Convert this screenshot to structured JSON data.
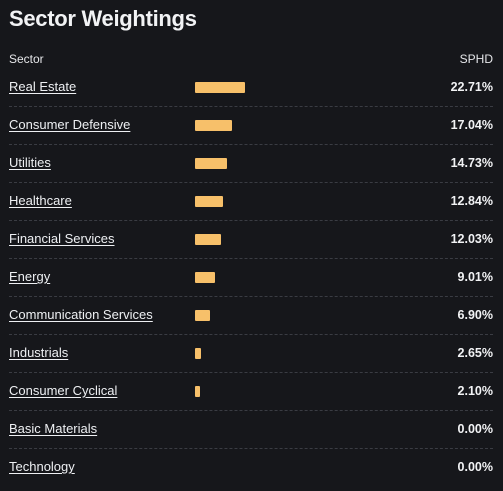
{
  "title": "Sector Weightings",
  "columns": {
    "sector": "Sector",
    "fund": "SPHD"
  },
  "bar_color": "#f7c06a",
  "scale_max_pct": 100,
  "rows": [
    {
      "sector": "Real Estate",
      "value": "22.71%",
      "pct": 22.71
    },
    {
      "sector": "Consumer Defensive",
      "value": "17.04%",
      "pct": 17.04
    },
    {
      "sector": "Utilities",
      "value": "14.73%",
      "pct": 14.73
    },
    {
      "sector": "Healthcare",
      "value": "12.84%",
      "pct": 12.84
    },
    {
      "sector": "Financial Services",
      "value": "12.03%",
      "pct": 12.03
    },
    {
      "sector": "Energy",
      "value": "9.01%",
      "pct": 9.01
    },
    {
      "sector": "Communication Services",
      "value": "6.90%",
      "pct": 6.9
    },
    {
      "sector": "Industrials",
      "value": "2.65%",
      "pct": 2.65
    },
    {
      "sector": "Consumer Cyclical",
      "value": "2.10%",
      "pct": 2.1
    },
    {
      "sector": "Basic Materials",
      "value": "0.00%",
      "pct": 0.0
    },
    {
      "sector": "Technology",
      "value": "0.00%",
      "pct": 0.0
    }
  ]
}
